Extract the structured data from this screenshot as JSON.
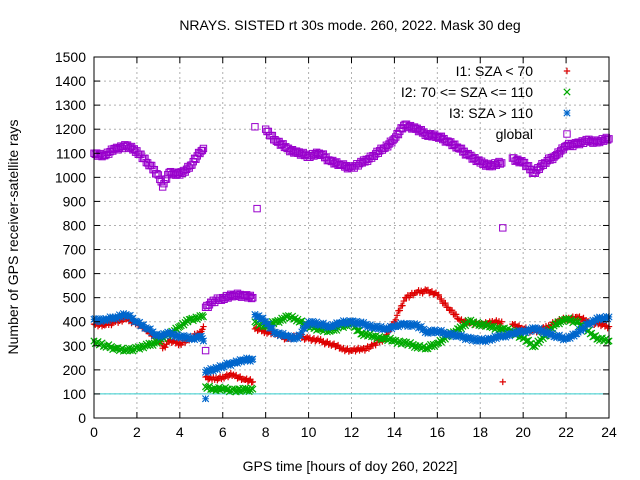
{
  "chart_data": {
    "type": "scatter",
    "title": "NRAYS. SISTED rt 30s mode. 260, 2022. Mask 30 deg",
    "xlabel": "GPS time [hours of doy 260, 2022]",
    "ylabel": "Number of GPS receiver-satellite rays",
    "xlim": [
      0,
      24
    ],
    "ylim": [
      0,
      1500
    ],
    "xticks": [
      0,
      2,
      4,
      6,
      8,
      10,
      12,
      14,
      16,
      18,
      20,
      22,
      24
    ],
    "yticks": [
      0,
      100,
      200,
      300,
      400,
      500,
      600,
      700,
      800,
      900,
      1000,
      1100,
      1200,
      1300,
      1400,
      1500
    ],
    "grid": true,
    "legend_position": "top-right",
    "reference_line": {
      "y": 100,
      "color": "#33cccc"
    },
    "series": [
      {
        "name": "I1: SZA < 70",
        "marker": "plus",
        "color": "#dd0000",
        "points": [
          [
            0.0,
            390
          ],
          [
            0.5,
            385
          ],
          [
            1.0,
            400
          ],
          [
            1.5,
            410
          ],
          [
            2.0,
            395
          ],
          [
            2.5,
            360
          ],
          [
            3.0,
            330
          ],
          [
            3.2,
            290
          ],
          [
            3.5,
            320
          ],
          [
            4.0,
            310
          ],
          [
            4.5,
            330
          ],
          [
            5.0,
            360
          ],
          [
            5.1,
            380
          ],
          [
            5.2,
            170
          ],
          [
            5.5,
            160
          ],
          [
            6.0,
            170
          ],
          [
            6.5,
            180
          ],
          [
            7.0,
            160
          ],
          [
            7.4,
            150
          ],
          [
            7.5,
            370
          ],
          [
            8.0,
            360
          ],
          [
            8.5,
            350
          ],
          [
            9.0,
            330
          ],
          [
            9.5,
            340
          ],
          [
            10.0,
            330
          ],
          [
            10.5,
            320
          ],
          [
            11.0,
            310
          ],
          [
            11.5,
            290
          ],
          [
            12.0,
            280
          ],
          [
            12.5,
            285
          ],
          [
            13.0,
            300
          ],
          [
            13.5,
            330
          ],
          [
            14.0,
            400
          ],
          [
            14.5,
            500
          ],
          [
            15.0,
            520
          ],
          [
            15.5,
            530
          ],
          [
            16.0,
            510
          ],
          [
            16.5,
            460
          ],
          [
            17.0,
            410
          ],
          [
            17.5,
            395
          ],
          [
            18.0,
            390
          ],
          [
            18.5,
            395
          ],
          [
            19.0,
            400
          ],
          [
            19.05,
            150
          ],
          [
            19.5,
            390
          ],
          [
            20.0,
            370
          ],
          [
            20.5,
            360
          ],
          [
            21.0,
            370
          ],
          [
            21.5,
            400
          ],
          [
            22.0,
            410
          ],
          [
            22.5,
            420
          ],
          [
            23.0,
            400
          ],
          [
            23.5,
            390
          ],
          [
            24.0,
            380
          ]
        ]
      },
      {
        "name": "I2: 70 <= SZA <= 110",
        "marker": "x",
        "color": "#00aa00",
        "points": [
          [
            0.0,
            320
          ],
          [
            0.5,
            300
          ],
          [
            1.0,
            290
          ],
          [
            1.5,
            280
          ],
          [
            2.0,
            290
          ],
          [
            2.5,
            300
          ],
          [
            3.0,
            320
          ],
          [
            3.5,
            350
          ],
          [
            4.0,
            380
          ],
          [
            4.5,
            410
          ],
          [
            5.0,
            420
          ],
          [
            5.1,
            420
          ],
          [
            5.2,
            130
          ],
          [
            5.5,
            120
          ],
          [
            6.0,
            120
          ],
          [
            6.5,
            115
          ],
          [
            7.0,
            115
          ],
          [
            7.4,
            120
          ],
          [
            7.5,
            400
          ],
          [
            8.0,
            380
          ],
          [
            8.5,
            400
          ],
          [
            9.0,
            420
          ],
          [
            9.5,
            410
          ],
          [
            10.0,
            380
          ],
          [
            10.5,
            370
          ],
          [
            11.0,
            360
          ],
          [
            11.5,
            380
          ],
          [
            12.0,
            390
          ],
          [
            12.5,
            350
          ],
          [
            13.0,
            340
          ],
          [
            13.5,
            330
          ],
          [
            14.0,
            320
          ],
          [
            14.5,
            310
          ],
          [
            15.0,
            300
          ],
          [
            15.5,
            290
          ],
          [
            16.0,
            310
          ],
          [
            16.5,
            340
          ],
          [
            17.0,
            370
          ],
          [
            17.5,
            400
          ],
          [
            18.0,
            390
          ],
          [
            18.5,
            380
          ],
          [
            19.0,
            370
          ],
          [
            19.5,
            360
          ],
          [
            20.0,
            330
          ],
          [
            20.5,
            300
          ],
          [
            21.0,
            340
          ],
          [
            21.5,
            390
          ],
          [
            22.0,
            410
          ],
          [
            22.5,
            400
          ],
          [
            23.0,
            360
          ],
          [
            23.5,
            330
          ],
          [
            24.0,
            320
          ]
        ]
      },
      {
        "name": "I3: SZA > 110",
        "marker": "star",
        "color": "#0066cc",
        "points": [
          [
            0.0,
            410
          ],
          [
            0.5,
            405
          ],
          [
            1.0,
            420
          ],
          [
            1.5,
            430
          ],
          [
            2.0,
            400
          ],
          [
            2.5,
            370
          ],
          [
            3.0,
            340
          ],
          [
            3.5,
            350
          ],
          [
            4.0,
            340
          ],
          [
            4.5,
            330
          ],
          [
            5.0,
            340
          ],
          [
            5.1,
            320
          ],
          [
            5.2,
            190
          ],
          [
            5.5,
            200
          ],
          [
            6.0,
            215
          ],
          [
            6.5,
            230
          ],
          [
            7.0,
            240
          ],
          [
            7.4,
            245
          ],
          [
            5.2,
            80
          ],
          [
            7.5,
            430
          ],
          [
            8.0,
            400
          ],
          [
            8.5,
            350
          ],
          [
            9.0,
            340
          ],
          [
            9.5,
            330
          ],
          [
            10.0,
            400
          ],
          [
            10.5,
            390
          ],
          [
            11.0,
            380
          ],
          [
            11.5,
            395
          ],
          [
            12.0,
            400
          ],
          [
            12.5,
            390
          ],
          [
            13.0,
            380
          ],
          [
            13.5,
            370
          ],
          [
            14.0,
            380
          ],
          [
            14.5,
            390
          ],
          [
            15.0,
            385
          ],
          [
            15.5,
            360
          ],
          [
            16.0,
            360
          ],
          [
            16.5,
            350
          ],
          [
            17.0,
            340
          ],
          [
            17.5,
            330
          ],
          [
            18.0,
            320
          ],
          [
            18.5,
            330
          ],
          [
            19.0,
            340
          ],
          [
            19.5,
            350
          ],
          [
            20.0,
            360
          ],
          [
            20.5,
            370
          ],
          [
            21.0,
            360
          ],
          [
            21.5,
            340
          ],
          [
            22.0,
            330
          ],
          [
            22.5,
            350
          ],
          [
            23.0,
            390
          ],
          [
            23.5,
            410
          ],
          [
            24.0,
            420
          ]
        ]
      },
      {
        "name": "global",
        "marker": "square",
        "color": "#9900cc",
        "points": [
          [
            0.0,
            1100
          ],
          [
            0.5,
            1090
          ],
          [
            1.0,
            1120
          ],
          [
            1.5,
            1130
          ],
          [
            2.0,
            1110
          ],
          [
            2.5,
            1060
          ],
          [
            3.0,
            1010
          ],
          [
            3.2,
            960
          ],
          [
            3.5,
            1020
          ],
          [
            4.0,
            1010
          ],
          [
            4.5,
            1050
          ],
          [
            5.0,
            1110
          ],
          [
            5.1,
            1120
          ],
          [
            5.2,
            460
          ],
          [
            5.5,
            480
          ],
          [
            6.0,
            500
          ],
          [
            6.5,
            510
          ],
          [
            7.0,
            510
          ],
          [
            7.4,
            500
          ],
          [
            5.2,
            280
          ],
          [
            7.5,
            1210
          ],
          [
            7.6,
            870
          ],
          [
            8.0,
            1200
          ],
          [
            8.5,
            1150
          ],
          [
            9.0,
            1120
          ],
          [
            9.5,
            1100
          ],
          [
            10.0,
            1090
          ],
          [
            10.5,
            1100
          ],
          [
            11.0,
            1070
          ],
          [
            11.5,
            1050
          ],
          [
            12.0,
            1040
          ],
          [
            12.5,
            1060
          ],
          [
            13.0,
            1090
          ],
          [
            13.5,
            1120
          ],
          [
            14.0,
            1160
          ],
          [
            14.5,
            1220
          ],
          [
            15.0,
            1200
          ],
          [
            15.5,
            1180
          ],
          [
            16.0,
            1170
          ],
          [
            16.5,
            1150
          ],
          [
            17.0,
            1120
          ],
          [
            17.5,
            1090
          ],
          [
            18.0,
            1060
          ],
          [
            18.5,
            1050
          ],
          [
            19.0,
            1060
          ],
          [
            19.05,
            790
          ],
          [
            19.5,
            1080
          ],
          [
            20.0,
            1060
          ],
          [
            20.5,
            1020
          ],
          [
            21.0,
            1060
          ],
          [
            21.5,
            1090
          ],
          [
            22.0,
            1130
          ],
          [
            22.5,
            1140
          ],
          [
            23.0,
            1150
          ],
          [
            23.5,
            1150
          ],
          [
            24.0,
            1160
          ]
        ]
      }
    ]
  }
}
